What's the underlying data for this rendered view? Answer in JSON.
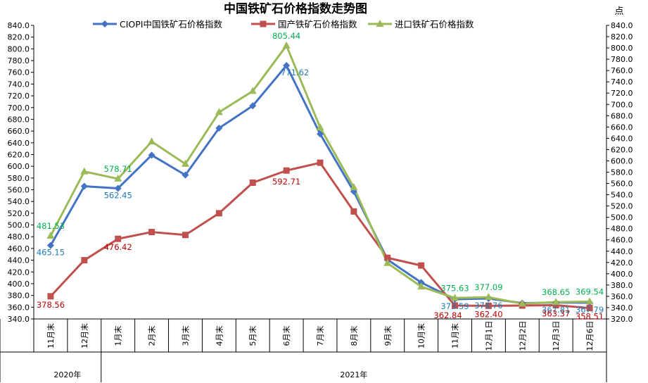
{
  "chart_data": {
    "type": "line",
    "title": "中国铁矿石价格指数走势图",
    "right_unit": "点",
    "categories": [
      "11月末",
      "12月末",
      "1月末",
      "2月末",
      "3月末",
      "4月末",
      "5月末",
      "6月末",
      "7月末",
      "8月末",
      "9月末",
      "10月末",
      "11月末",
      "12月1日",
      "12月2日",
      "12月3日",
      "12月6日"
    ],
    "year_groups": [
      {
        "label": "2020年",
        "start": 0,
        "end": 1
      },
      {
        "label": "2021年",
        "start": 2,
        "end": 16
      }
    ],
    "left_axis": {
      "min": 340,
      "max": 840,
      "step": 20
    },
    "right_axis": {
      "min": 320,
      "max": 840,
      "step": 20
    },
    "left_ticks": [
      "840.0",
      "820.0",
      "800.0",
      "780.0",
      "760.0",
      "740.0",
      "720.0",
      "700.0",
      "680.0",
      "660.0",
      "640.0",
      "620.0",
      "600.0",
      "580.0",
      "560.0",
      "540.0",
      "520.0",
      "500.0",
      "480.0",
      "460.0",
      "440.0",
      "420.0",
      "400.0",
      "380.0",
      "360.0",
      "340.0"
    ],
    "right_ticks": [
      "840.0",
      "820.0",
      "800.0",
      "780.0",
      "760.0",
      "740.0",
      "720.0",
      "700.0",
      "680.0",
      "660.0",
      "640.0",
      "620.0",
      "600.0",
      "580.0",
      "560.0",
      "540.0",
      "520.0",
      "500.0",
      "480.0",
      "460.0",
      "440.0",
      "420.0",
      "400.0",
      "380.0",
      "360.0",
      "340.0",
      "320.0"
    ],
    "grid": false,
    "legend_position": "top",
    "series": [
      {
        "name": "CIOPI中国铁矿石价格指数",
        "color": "#4472C4",
        "marker": "diamond",
        "values": [
          465.15,
          566,
          562.45,
          619,
          585,
          665,
          703,
          771.62,
          655,
          557,
          441,
          402,
          373.59,
          374.76,
          367,
          367.81,
          367.79
        ],
        "labels": [
          {
            "index": 0,
            "text": "465.15"
          },
          {
            "index": 2,
            "text": "562.45"
          },
          {
            "index": 7,
            "text": "771.62"
          },
          {
            "index": 12,
            "text": "373.59"
          },
          {
            "index": 13,
            "text": "374.76"
          },
          {
            "index": 15,
            "text": "367.81"
          },
          {
            "index": 16,
            "text": "367.79"
          }
        ]
      },
      {
        "name": "国产铁矿石价格指数",
        "color": "#C0504D",
        "marker": "square",
        "values": [
          378.56,
          440,
          476.42,
          488,
          483,
          520,
          572,
          592.71,
          606,
          523,
          444,
          431,
          362.84,
          362.4,
          362.8,
          363.37,
          358.51
        ],
        "labels": [
          {
            "index": 0,
            "text": "378.56"
          },
          {
            "index": 2,
            "text": "476.42"
          },
          {
            "index": 7,
            "text": "592.71"
          },
          {
            "index": 12,
            "text": "362.84"
          },
          {
            "index": 13,
            "text": "362.40"
          },
          {
            "index": 15,
            "text": "363.37"
          },
          {
            "index": 16,
            "text": "358.51"
          }
        ]
      },
      {
        "name": "进口铁矿石价格指数",
        "color": "#9BBB59",
        "marker": "triangle",
        "values": [
          481.53,
          591,
          578.71,
          642,
          604,
          692,
          728,
          805.44,
          666,
          564,
          435,
          395,
          375.63,
          377.09,
          366,
          368.65,
          369.54
        ],
        "labels": [
          {
            "index": 0,
            "text": "481.53"
          },
          {
            "index": 2,
            "text": "578.71"
          },
          {
            "index": 7,
            "text": "805.44"
          },
          {
            "index": 12,
            "text": "375.63"
          },
          {
            "index": 13,
            "text": "377.09"
          },
          {
            "index": 15,
            "text": "368.65"
          },
          {
            "index": 16,
            "text": "369.54"
          }
        ]
      }
    ]
  },
  "label_colors": {
    "CIOPI": "#1F7AB8",
    "domestic": "#C00000",
    "imported": "#00B050"
  }
}
